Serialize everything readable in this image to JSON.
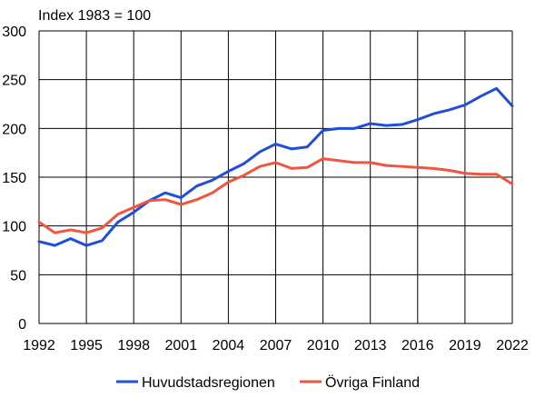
{
  "chart_data": {
    "type": "line",
    "unit_label": "Index 1983 = 100",
    "x": [
      1992,
      1993,
      1994,
      1995,
      1996,
      1997,
      1998,
      1999,
      2000,
      2001,
      2002,
      2003,
      2004,
      2005,
      2006,
      2007,
      2008,
      2009,
      2010,
      2011,
      2012,
      2013,
      2014,
      2015,
      2016,
      2017,
      2018,
      2019,
      2020,
      2021,
      2022
    ],
    "xticks": [
      "1992",
      "1995",
      "1998",
      "2001",
      "2004",
      "2007",
      "2010",
      "2013",
      "2016",
      "2019",
      "2022"
    ],
    "yticks": [
      "0",
      "50",
      "100",
      "150",
      "200",
      "250",
      "300"
    ],
    "ylim": [
      0,
      300
    ],
    "xlim": [
      1992,
      2022
    ],
    "grid": true,
    "legend_position": "bottom",
    "series": [
      {
        "name": "Huvudstadsregionen",
        "color": "#1f4fd9",
        "values": [
          84,
          80,
          87,
          80,
          85,
          104,
          114,
          126,
          134,
          129,
          141,
          147,
          156,
          164,
          176,
          184,
          179,
          181,
          198,
          200,
          200,
          205,
          203,
          204,
          209,
          215,
          219,
          224,
          233,
          241,
          223
        ]
      },
      {
        "name": "Övriga Finland",
        "color": "#f0553f",
        "values": [
          104,
          93,
          96,
          93,
          98,
          112,
          119,
          126,
          127,
          122,
          127,
          134,
          145,
          152,
          161,
          165,
          159,
          160,
          169,
          167,
          165,
          165,
          162,
          161,
          160,
          159,
          157,
          154,
          153,
          153,
          143
        ]
      }
    ]
  }
}
